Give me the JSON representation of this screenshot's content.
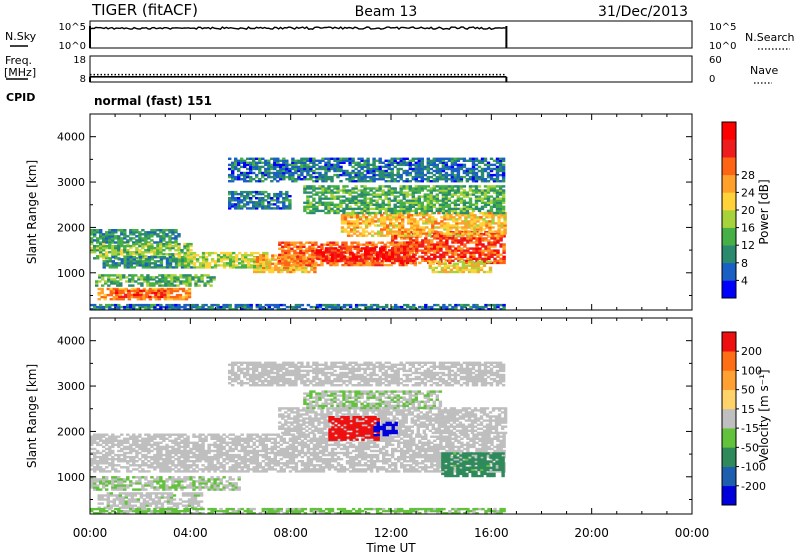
{
  "header": {
    "station": "TIGER (fitACF)",
    "beam": "Beam 13",
    "date": "31/Dec/2013"
  },
  "strips": {
    "nsky": {
      "label": "N.Sky",
      "ticks_left": [
        "10^5",
        "10^0"
      ],
      "ticks_right": [
        "10^5",
        "10^0"
      ],
      "right_label": "N.Search",
      "end_ut": 16.6
    },
    "freq": {
      "label_line1": "Freq.",
      "label_line2": "[MHz]",
      "ticks_left": [
        "18",
        "8"
      ],
      "ticks_right": [
        "60",
        "0"
      ],
      "right_label": "Nave",
      "freq_mhz": 10.0,
      "nave": 17,
      "end_ut": 16.6
    },
    "cpid": {
      "label": "CPID",
      "value": "normal (fast) 151"
    }
  },
  "axes": {
    "xlabel": "Time UT",
    "ylabel": "Slant Range [km]",
    "xticks": [
      "00:00",
      "04:00",
      "08:00",
      "12:00",
      "16:00",
      "20:00",
      "00:00"
    ],
    "xlim": [
      0,
      24
    ],
    "ylim": [
      180,
      4500
    ],
    "yticks": [
      1000,
      2000,
      3000,
      4000
    ]
  },
  "colorbars": {
    "power": {
      "label": "Power [dB]",
      "ticks": [
        "4",
        "8",
        "12",
        "16",
        "20",
        "24",
        "28"
      ],
      "colors": [
        "#0000ff",
        "#1a5fc4",
        "#2a8a6e",
        "#46b046",
        "#a6d23a",
        "#ffd23a",
        "#ffa02a",
        "#ff6414",
        "#ee1c1c",
        "#ff0000"
      ]
    },
    "velocity": {
      "label": "Velocity [m s⁻¹]",
      "ticks": [
        "200",
        "100",
        "50",
        "15",
        "-15",
        "-50",
        "-100",
        "-200"
      ],
      "colors": [
        "#0000dd",
        "#1d5fae",
        "#2e8a5a",
        "#62c23c",
        "#bfbfbf",
        "#ffd26a",
        "#ffa032",
        "#ff6e14",
        "#ee1010"
      ]
    }
  },
  "chart_data": [
    {
      "type": "heatmap",
      "title": "",
      "xlabel": "Time UT",
      "ylabel": "Slant Range [km]",
      "xlim": [
        0,
        24
      ],
      "ylim": [
        180,
        4500
      ],
      "zlabel": "Power [dB]",
      "zlim": [
        0,
        30
      ],
      "regions": [
        {
          "t0": 0.0,
          "t1": 3.5,
          "r0": 1650,
          "r1": 1950,
          "z": 8
        },
        {
          "t0": 0.0,
          "t1": 4.0,
          "r0": 1300,
          "r1": 1650,
          "z": 12
        },
        {
          "t0": 0.5,
          "t1": 4.0,
          "r0": 1100,
          "r1": 1350,
          "z": 8
        },
        {
          "t0": 0.2,
          "t1": 5.0,
          "r0": 700,
          "r1": 950,
          "z": 10
        },
        {
          "t0": 0.3,
          "t1": 4.0,
          "r0": 400,
          "r1": 650,
          "z": 20
        },
        {
          "t0": 1.0,
          "t1": 3.0,
          "r0": 450,
          "r1": 600,
          "z": 24
        },
        {
          "t0": 3.5,
          "t1": 7.0,
          "r0": 1100,
          "r1": 1450,
          "z": 14
        },
        {
          "t0": 6.5,
          "t1": 9.0,
          "r0": 1000,
          "r1": 1400,
          "z": 18
        },
        {
          "t0": 7.5,
          "t1": 13.0,
          "r0": 1150,
          "r1": 1650,
          "z": 22
        },
        {
          "t0": 9.0,
          "t1": 12.5,
          "r0": 1250,
          "r1": 1550,
          "z": 27
        },
        {
          "t0": 12.0,
          "t1": 16.5,
          "r0": 1200,
          "r1": 1900,
          "z": 24
        },
        {
          "t0": 13.5,
          "t1": 16.0,
          "r0": 1000,
          "r1": 1250,
          "z": 16
        },
        {
          "t0": 10.0,
          "t1": 16.5,
          "r0": 1800,
          "r1": 2300,
          "z": 18
        },
        {
          "t0": 8.5,
          "t1": 16.5,
          "r0": 2300,
          "r1": 2900,
          "z": 10
        },
        {
          "t0": 5.5,
          "t1": 8.0,
          "r0": 2400,
          "r1": 2800,
          "z": 6
        },
        {
          "t0": 5.5,
          "t1": 16.5,
          "r0": 3000,
          "r1": 3500,
          "z": 6
        },
        {
          "t0": 0.0,
          "t1": 16.5,
          "r0": 180,
          "r1": 300,
          "z": 6
        }
      ]
    },
    {
      "type": "heatmap",
      "title": "",
      "xlabel": "Time UT",
      "ylabel": "Slant Range [km]",
      "xlim": [
        0,
        24
      ],
      "ylim": [
        180,
        4500
      ],
      "zlabel": "Velocity [m s⁻¹]",
      "zlim": [
        -200,
        200
      ],
      "regions": [
        {
          "t0": 0.0,
          "t1": 16.5,
          "r0": 1100,
          "r1": 1950,
          "z": 0
        },
        {
          "t0": 0.0,
          "t1": 6.0,
          "r0": 700,
          "r1": 1000,
          "z": -20
        },
        {
          "t0": 0.3,
          "t1": 4.5,
          "r0": 300,
          "r1": 650,
          "z": -10
        },
        {
          "t0": 0.0,
          "t1": 16.5,
          "r0": 180,
          "r1": 300,
          "z": -30
        },
        {
          "t0": 7.5,
          "t1": 16.5,
          "r0": 1950,
          "r1": 2500,
          "z": 5
        },
        {
          "t0": 8.5,
          "t1": 14.0,
          "r0": 2500,
          "r1": 2900,
          "z": -20
        },
        {
          "t0": 9.5,
          "t1": 11.5,
          "r0": 1800,
          "r1": 2300,
          "z": 200
        },
        {
          "t0": 11.3,
          "t1": 12.2,
          "r0": 1900,
          "r1": 2200,
          "z": -200
        },
        {
          "t0": 14.0,
          "t1": 16.5,
          "r0": 1000,
          "r1": 1500,
          "z": -80
        },
        {
          "t0": 5.5,
          "t1": 16.5,
          "r0": 3000,
          "r1": 3500,
          "z": 0
        }
      ]
    }
  ]
}
